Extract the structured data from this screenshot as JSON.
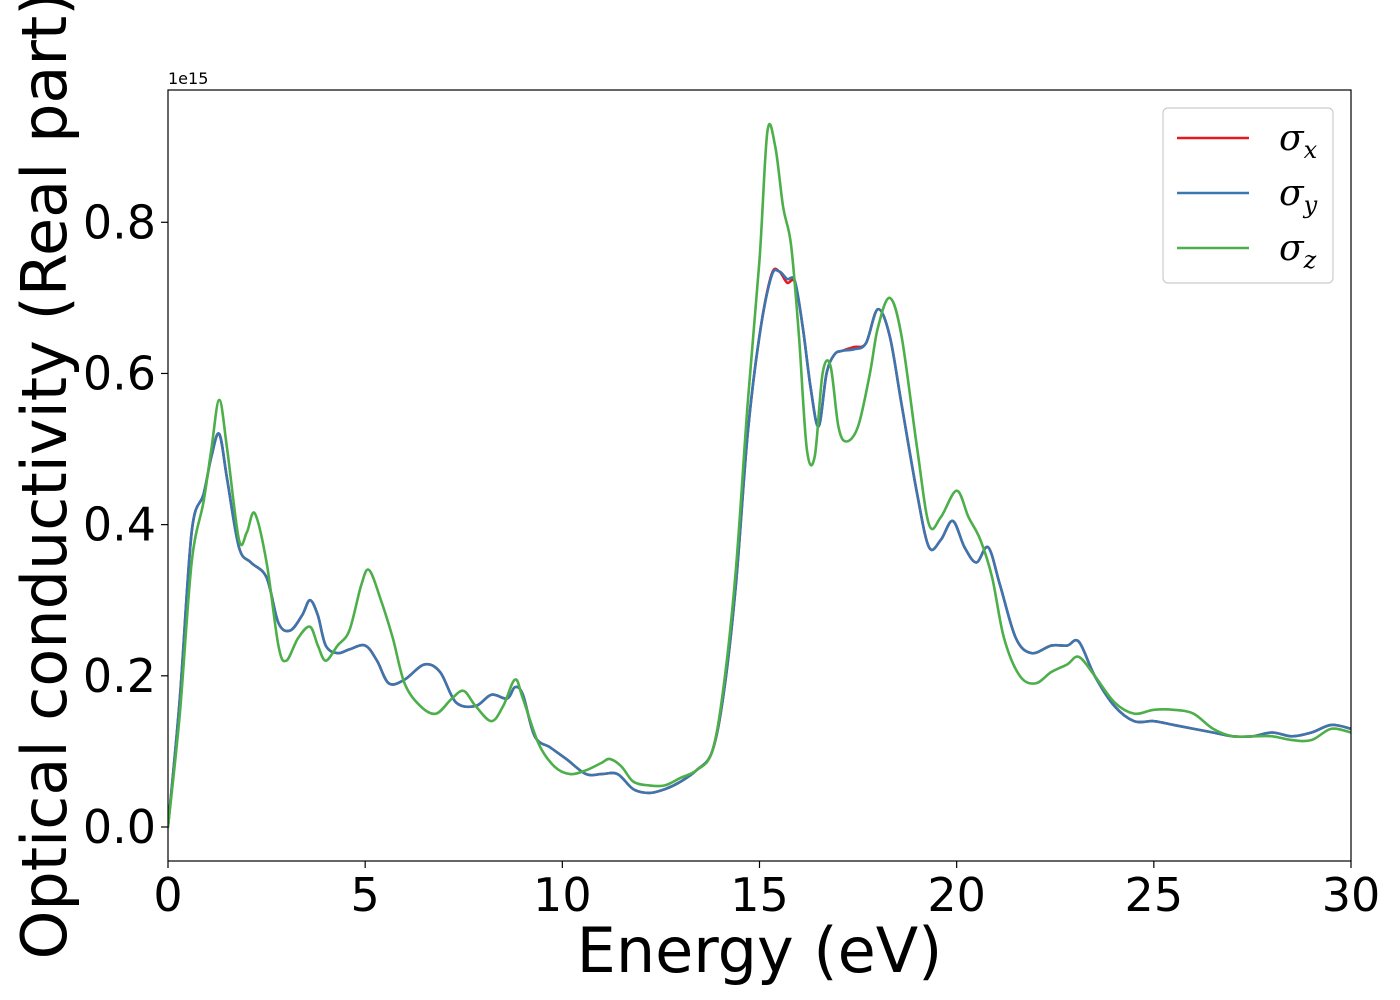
{
  "chart_data": {
    "type": "line",
    "xlabel": "Energy (eV)",
    "ylabel": "Optical conductivity (Real part)",
    "y_offset_text": "1e15",
    "xlim": [
      0,
      30
    ],
    "ylim": [
      -0.045,
      0.975
    ],
    "x_ticks": [
      0,
      5,
      10,
      15,
      20,
      25,
      30
    ],
    "y_ticks": [
      0.0,
      0.2,
      0.4,
      0.6,
      0.8
    ],
    "grid": false,
    "legend_position": "top-right",
    "series": [
      {
        "name": "σx",
        "legend_base": "σ",
        "legend_sub": "x",
        "color": "#e41a1c",
        "x": [
          0,
          0.3,
          0.6,
          0.9,
          1.1,
          1.3,
          1.5,
          1.8,
          2.1,
          2.5,
          2.8,
          3.1,
          3.4,
          3.6,
          3.8,
          4.0,
          4.3,
          4.6,
          5.0,
          5.3,
          5.6,
          6.0,
          6.5,
          6.9,
          7.3,
          7.8,
          8.2,
          8.6,
          8.8,
          9.0,
          9.3,
          9.7,
          10.1,
          10.6,
          11.0,
          11.4,
          11.8,
          12.2,
          12.6,
          13.0,
          13.4,
          13.8,
          14.1,
          14.4,
          14.7,
          15.0,
          15.3,
          15.5,
          15.7,
          15.9,
          16.1,
          16.3,
          16.5,
          16.7,
          16.9,
          17.1,
          17.4,
          17.7,
          18.0,
          18.3,
          18.6,
          19.0,
          19.3,
          19.6,
          19.9,
          20.2,
          20.5,
          20.8,
          21.1,
          21.5,
          21.9,
          22.4,
          22.8,
          23.1,
          23.5,
          24.0,
          24.5,
          25.0,
          25.5,
          26.0,
          26.5,
          27.0,
          27.5,
          28.0,
          28.5,
          29.0,
          29.5,
          30.0
        ],
        "values": [
          0.0,
          0.17,
          0.39,
          0.44,
          0.49,
          0.52,
          0.46,
          0.37,
          0.35,
          0.33,
          0.27,
          0.26,
          0.28,
          0.3,
          0.28,
          0.24,
          0.23,
          0.235,
          0.24,
          0.22,
          0.19,
          0.195,
          0.215,
          0.205,
          0.165,
          0.16,
          0.175,
          0.17,
          0.185,
          0.175,
          0.12,
          0.105,
          0.09,
          0.07,
          0.07,
          0.07,
          0.05,
          0.045,
          0.05,
          0.06,
          0.075,
          0.1,
          0.18,
          0.32,
          0.52,
          0.65,
          0.73,
          0.735,
          0.72,
          0.72,
          0.66,
          0.58,
          0.53,
          0.6,
          0.625,
          0.63,
          0.635,
          0.64,
          0.685,
          0.65,
          0.56,
          0.44,
          0.37,
          0.38,
          0.405,
          0.37,
          0.35,
          0.37,
          0.32,
          0.25,
          0.23,
          0.24,
          0.24,
          0.245,
          0.2,
          0.16,
          0.14,
          0.14,
          0.135,
          0.13,
          0.125,
          0.12,
          0.12,
          0.125,
          0.12,
          0.125,
          0.135,
          0.13
        ]
      },
      {
        "name": "σy",
        "legend_base": "σ",
        "legend_sub": "y",
        "color": "#3a76af",
        "x": [
          0,
          0.3,
          0.6,
          0.9,
          1.1,
          1.3,
          1.5,
          1.8,
          2.1,
          2.5,
          2.8,
          3.1,
          3.4,
          3.6,
          3.8,
          4.0,
          4.3,
          4.6,
          5.0,
          5.3,
          5.6,
          6.0,
          6.5,
          6.9,
          7.3,
          7.8,
          8.2,
          8.6,
          8.8,
          9.0,
          9.3,
          9.7,
          10.1,
          10.6,
          11.0,
          11.4,
          11.8,
          12.2,
          12.6,
          13.0,
          13.4,
          13.8,
          14.1,
          14.4,
          14.7,
          15.0,
          15.3,
          15.5,
          15.7,
          15.9,
          16.1,
          16.3,
          16.5,
          16.7,
          16.9,
          17.1,
          17.4,
          17.7,
          18.0,
          18.3,
          18.6,
          19.0,
          19.3,
          19.6,
          19.9,
          20.2,
          20.5,
          20.8,
          21.1,
          21.5,
          21.9,
          22.4,
          22.8,
          23.1,
          23.5,
          24.0,
          24.5,
          25.0,
          25.5,
          26.0,
          26.5,
          27.0,
          27.5,
          28.0,
          28.5,
          29.0,
          29.5,
          30.0
        ],
        "values": [
          0.0,
          0.17,
          0.39,
          0.44,
          0.49,
          0.52,
          0.46,
          0.37,
          0.35,
          0.33,
          0.27,
          0.26,
          0.28,
          0.3,
          0.28,
          0.24,
          0.23,
          0.235,
          0.24,
          0.22,
          0.19,
          0.195,
          0.215,
          0.205,
          0.165,
          0.16,
          0.175,
          0.17,
          0.185,
          0.175,
          0.12,
          0.105,
          0.09,
          0.07,
          0.07,
          0.07,
          0.05,
          0.045,
          0.05,
          0.06,
          0.075,
          0.1,
          0.18,
          0.32,
          0.52,
          0.65,
          0.728,
          0.735,
          0.725,
          0.722,
          0.66,
          0.58,
          0.53,
          0.6,
          0.625,
          0.63,
          0.632,
          0.64,
          0.685,
          0.65,
          0.56,
          0.44,
          0.37,
          0.38,
          0.405,
          0.37,
          0.35,
          0.37,
          0.32,
          0.25,
          0.23,
          0.24,
          0.24,
          0.245,
          0.2,
          0.16,
          0.14,
          0.14,
          0.135,
          0.13,
          0.125,
          0.12,
          0.12,
          0.125,
          0.12,
          0.125,
          0.135,
          0.13
        ]
      },
      {
        "name": "σz",
        "legend_base": "σ",
        "legend_sub": "z",
        "color": "#4daf4a",
        "x": [
          0,
          0.3,
          0.6,
          0.9,
          1.1,
          1.3,
          1.5,
          1.8,
          2.0,
          2.2,
          2.5,
          2.8,
          3.0,
          3.3,
          3.6,
          3.8,
          4.0,
          4.3,
          4.6,
          4.9,
          5.1,
          5.4,
          5.7,
          6.0,
          6.4,
          6.8,
          7.2,
          7.5,
          7.8,
          8.2,
          8.5,
          8.8,
          9.0,
          9.4,
          9.8,
          10.2,
          10.6,
          11.0,
          11.2,
          11.5,
          11.8,
          12.2,
          12.6,
          13.0,
          13.4,
          13.8,
          14.1,
          14.4,
          14.7,
          15.0,
          15.2,
          15.4,
          15.6,
          15.8,
          16.0,
          16.2,
          16.4,
          16.6,
          16.8,
          17.0,
          17.2,
          17.5,
          17.8,
          18.0,
          18.3,
          18.6,
          19.0,
          19.3,
          19.6,
          20.0,
          20.3,
          20.6,
          20.9,
          21.2,
          21.6,
          22.0,
          22.4,
          22.8,
          23.1,
          23.5,
          24.0,
          24.5,
          25.0,
          25.5,
          26.0,
          26.5,
          27.0,
          27.5,
          28.0,
          28.5,
          29.0,
          29.5,
          30.0
        ],
        "values": [
          0.0,
          0.15,
          0.35,
          0.43,
          0.5,
          0.565,
          0.5,
          0.38,
          0.39,
          0.415,
          0.35,
          0.24,
          0.22,
          0.25,
          0.265,
          0.24,
          0.22,
          0.24,
          0.26,
          0.32,
          0.34,
          0.3,
          0.25,
          0.19,
          0.16,
          0.15,
          0.17,
          0.18,
          0.16,
          0.14,
          0.16,
          0.195,
          0.17,
          0.11,
          0.08,
          0.07,
          0.075,
          0.085,
          0.09,
          0.08,
          0.06,
          0.055,
          0.055,
          0.065,
          0.075,
          0.1,
          0.19,
          0.34,
          0.56,
          0.75,
          0.92,
          0.9,
          0.82,
          0.77,
          0.65,
          0.5,
          0.49,
          0.6,
          0.61,
          0.53,
          0.51,
          0.53,
          0.6,
          0.66,
          0.7,
          0.65,
          0.5,
          0.4,
          0.41,
          0.445,
          0.41,
          0.38,
          0.33,
          0.25,
          0.2,
          0.19,
          0.205,
          0.215,
          0.225,
          0.2,
          0.165,
          0.15,
          0.155,
          0.155,
          0.15,
          0.13,
          0.12,
          0.12,
          0.12,
          0.115,
          0.115,
          0.13,
          0.125
        ]
      }
    ]
  }
}
